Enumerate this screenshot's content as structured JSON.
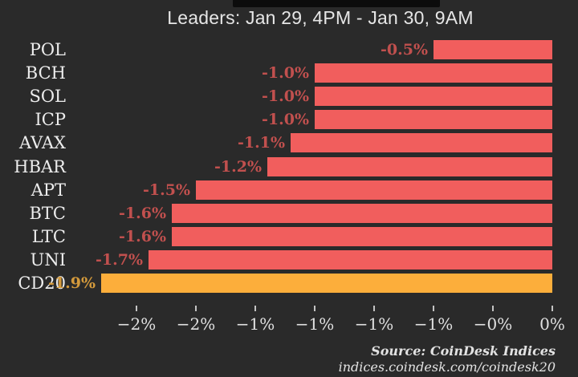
{
  "title": "Leaders: Jan 29, 4PM - Jan 30, 9AM",
  "footer": {
    "source": "Source: CoinDesk Indices",
    "url": "indices.coindesk.com/coindesk20"
  },
  "colors": {
    "background": "#2a2a2a",
    "bar": "#f15e5d",
    "highlight_bar": "#fcae3b",
    "value_label": "#c1504e",
    "highlight_value_label": "#d49a3c",
    "category_label": "#ededed",
    "tick": "#e0e0e0"
  },
  "chart_data": {
    "type": "bar",
    "orientation": "horizontal",
    "title": "Leaders: Jan 29, 4PM - Jan 30, 9AM",
    "categories": [
      "POL",
      "BCH",
      "SOL",
      "ICP",
      "AVAX",
      "HBAR",
      "APT",
      "BTC",
      "LTC",
      "UNI",
      "CD20"
    ],
    "values": [
      -0.5,
      -1.0,
      -1.0,
      -1.0,
      -1.1,
      -1.2,
      -1.5,
      -1.6,
      -1.6,
      -1.7,
      -1.9
    ],
    "value_labels": [
      "-0.5%",
      "-1.0%",
      "-1.0%",
      "-1.0%",
      "-1.1%",
      "-1.2%",
      "-1.5%",
      "-1.6%",
      "-1.6%",
      "-1.7%",
      "-1.9%"
    ],
    "highlight_category": "CD20",
    "xlim": [
      -2.05,
      0
    ],
    "grid": false,
    "legend": false,
    "x_ticks": {
      "values": [
        -1.75,
        -1.5,
        -1.25,
        -1.0,
        -0.75,
        -0.5,
        -0.25,
        0
      ],
      "labels": [
        "−2%",
        "−2%",
        "−1%",
        "−1%",
        "−1%",
        "−1%",
        "−0%",
        "0%"
      ]
    },
    "source_note": "Source: CoinDesk Indices",
    "source_url": "indices.coindesk.com/coindesk20"
  }
}
